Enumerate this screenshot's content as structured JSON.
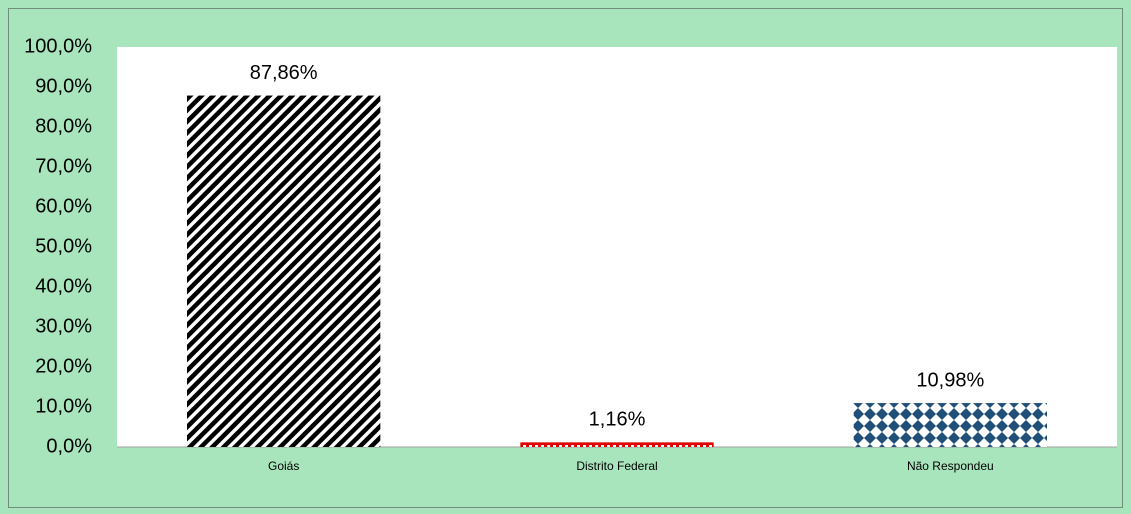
{
  "chart_data": {
    "type": "bar",
    "categories": [
      "Goiás",
      "Distrito Federal",
      "Não Respondeu"
    ],
    "values": [
      87.86,
      1.16,
      10.98
    ],
    "value_labels": [
      "87,86%",
      "1,16%",
      "10,98%"
    ],
    "colors": [
      "#000000",
      "#e00000",
      "#1f4e79"
    ],
    "ylim": [
      0,
      100
    ],
    "yticks": [
      {
        "value": 0,
        "label": "0,0%"
      },
      {
        "value": 10,
        "label": "10,0%"
      },
      {
        "value": 20,
        "label": "20,0%"
      },
      {
        "value": 30,
        "label": "30,0%"
      },
      {
        "value": 40,
        "label": "40,0%"
      },
      {
        "value": 50,
        "label": "50,0%"
      },
      {
        "value": 60,
        "label": "60,0%"
      },
      {
        "value": 70,
        "label": "70,0%"
      },
      {
        "value": 80,
        "label": "80,0%"
      },
      {
        "value": 90,
        "label": "90,0%"
      },
      {
        "value": 100,
        "label": "100,0%"
      }
    ]
  }
}
